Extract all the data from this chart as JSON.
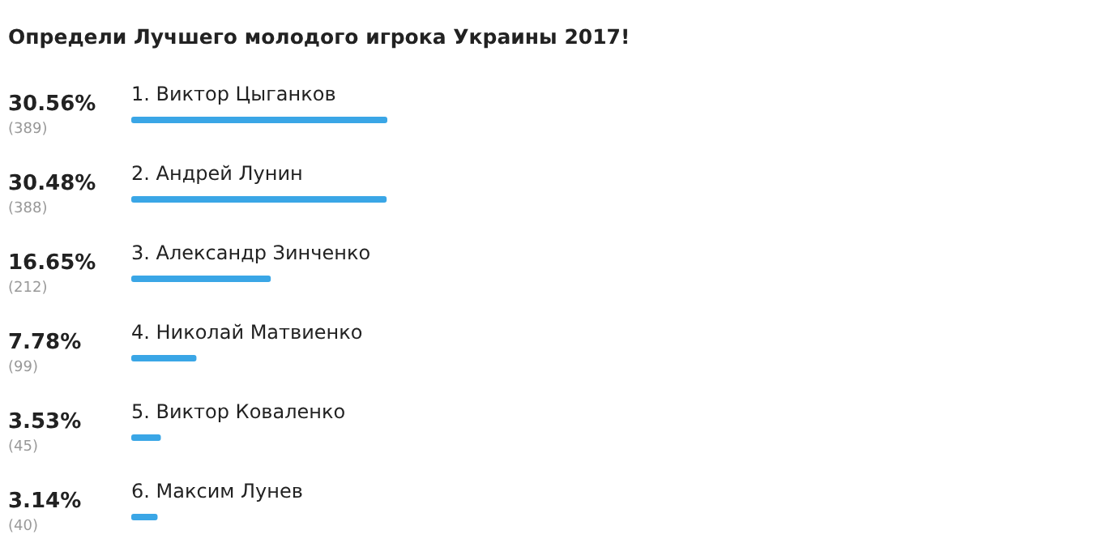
{
  "chart_data": {
    "type": "bar",
    "orientation": "horizontal",
    "title": "Определи Лучшего молодого игрока Украины 2017!",
    "categories": [
      "1. Виктор Цыганков",
      "2. Андрей Лунин",
      "3. Александр Зинченко",
      "4. Николай Матвиенко",
      "5. Виктор Коваленко",
      "6. Максим Лунев"
    ],
    "values": [
      30.56,
      30.48,
      16.65,
      7.78,
      3.53,
      3.14
    ],
    "value_labels": [
      "30.56%",
      "30.48%",
      "16.65%",
      "7.78%",
      "3.53%",
      "3.14%"
    ],
    "color": "#3aa6e6",
    "annotations": [
      "(389)",
      "(388)",
      "(212)",
      "(99)",
      "(45)",
      "(40)"
    ]
  }
}
